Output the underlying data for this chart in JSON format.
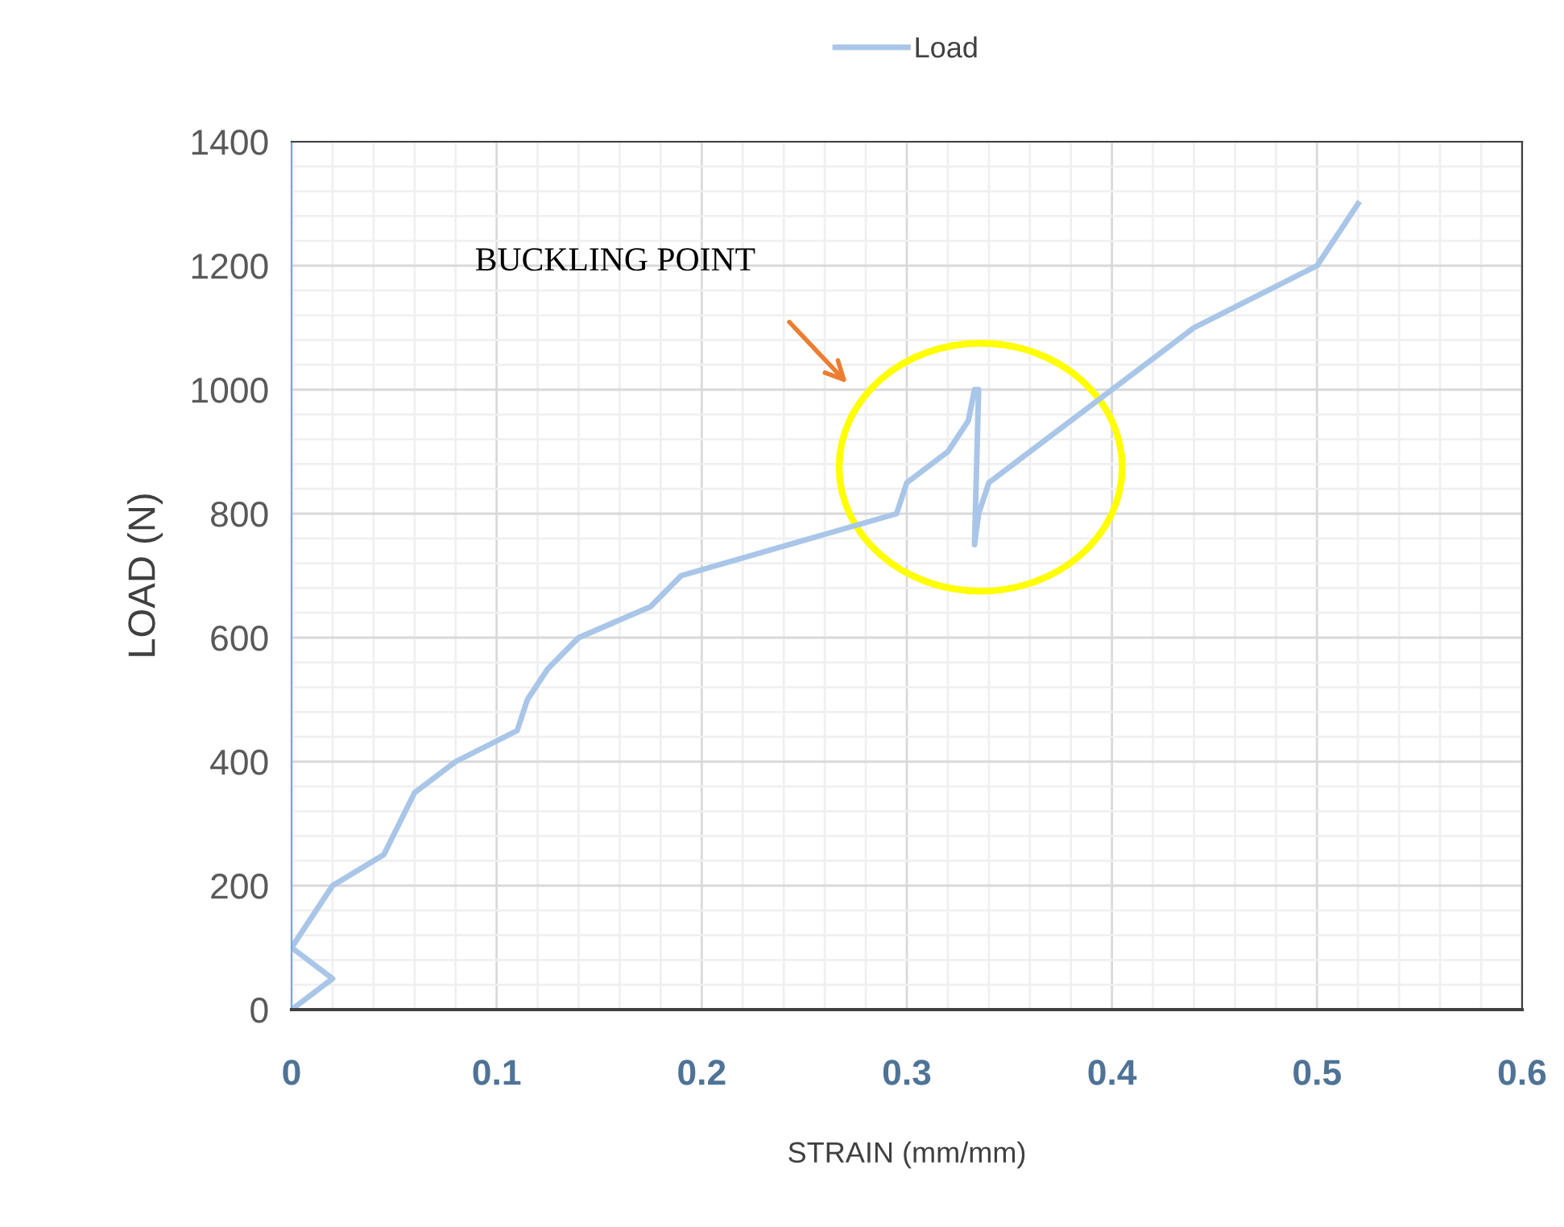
{
  "chart_data": {
    "type": "line",
    "xlabel": "STRAIN (mm/mm)",
    "ylabel": "LOAD (N)",
    "x": [
      0,
      0.02,
      0,
      0.02,
      0.045,
      0.06,
      0.08,
      0.11,
      0.115,
      0.125,
      0.14,
      0.175,
      0.19,
      0.295,
      0.3,
      0.32,
      0.33,
      0.333,
      0.335,
      0.333,
      0.335,
      0.34,
      0.44,
      0.5,
      0.52
    ],
    "series": [
      {
        "name": "Load",
        "color": "#a9c6e8",
        "values": [
          0,
          50,
          100,
          200,
          250,
          350,
          400,
          450,
          500,
          550,
          600,
          650,
          700,
          800,
          850,
          900,
          950,
          1000,
          1000,
          750,
          800,
          850,
          1100,
          1200,
          1300
        ]
      }
    ],
    "xlim": [
      0,
      0.6
    ],
    "xticks": [
      0,
      0.1,
      0.2,
      0.3,
      0.4,
      0.5,
      0.6
    ],
    "ylim": [
      0,
      1400
    ],
    "yticks": [
      0,
      200,
      400,
      600,
      800,
      1000,
      1200,
      1400
    ],
    "grid": true,
    "legend": "top",
    "marker": "none",
    "line_style": "solid",
    "annotations": [
      "BUCKLING POINT"
    ]
  }
}
